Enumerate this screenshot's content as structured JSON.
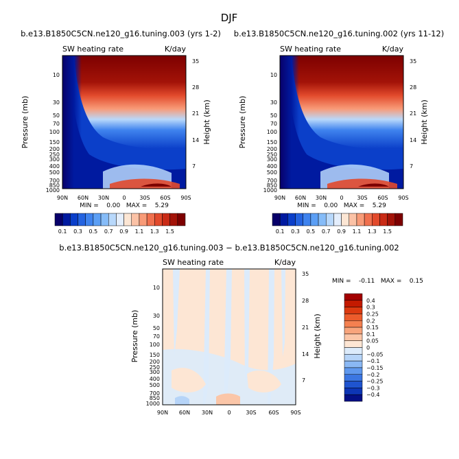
{
  "page": {
    "title": "DJF"
  },
  "chart_data": [
    {
      "type": "heatmap",
      "title": "b.e13.B1850C5CN.ne120_g16.tuning.003 (yrs 1-2)",
      "left_label": "SW heating rate",
      "right_label": "K/day",
      "xlabel": "",
      "ylabel": "Pressure (mb)",
      "y2label": "Height (km)",
      "xticks": [
        "90N",
        "60N",
        "30N",
        "0",
        "30S",
        "60S",
        "90S"
      ],
      "yticks": [
        "10",
        "30",
        "50",
        "70",
        "100",
        "150",
        "200",
        "250",
        "300",
        "400",
        "500",
        "700",
        "850",
        "1000"
      ],
      "height_ticks": [
        "35",
        "28",
        "21",
        "14",
        "7"
      ],
      "stats": "MIN =    0.00   MAX =    5.29",
      "min": 0.0,
      "max": 5.29,
      "colorbar": {
        "labels": [
          "0.1",
          "0.3",
          "0.5",
          "0.7",
          "0.9",
          "1.1",
          "1.3",
          "1.5"
        ],
        "colors": [
          "#08006a",
          "#001aa0",
          "#0b3fc9",
          "#2463e0",
          "#3f83ee",
          "#5c9ff5",
          "#86bcf8",
          "#b8d8fb",
          "#e4eefc",
          "#fce6d4",
          "#fbc2a6",
          "#f89b78",
          "#f0704e",
          "#e24a2c",
          "#c92b16",
          "#a31308",
          "#7d0000"
        ]
      }
    },
    {
      "type": "heatmap",
      "title": "b.e13.B1850C5CN.ne120_g16.tuning.002 (yrs 11-12)",
      "left_label": "SW heating rate",
      "right_label": "K/day",
      "xlabel": "",
      "ylabel": "Pressure (mb)",
      "y2label": "Height (km)",
      "xticks": [
        "90N",
        "60N",
        "30N",
        "0",
        "30S",
        "60S",
        "90S"
      ],
      "yticks": [
        "10",
        "30",
        "50",
        "70",
        "100",
        "150",
        "200",
        "250",
        "300",
        "400",
        "500",
        "700",
        "850",
        "1000"
      ],
      "height_ticks": [
        "35",
        "28",
        "21",
        "14",
        "7"
      ],
      "stats": "MIN =    0.00   MAX =    5.29",
      "min": 0.0,
      "max": 5.29,
      "colorbar": {
        "labels": [
          "0.1",
          "0.3",
          "0.5",
          "0.7",
          "0.9",
          "1.1",
          "1.3",
          "1.5"
        ],
        "colors": [
          "#08006a",
          "#001aa0",
          "#0b3fc9",
          "#2463e0",
          "#3f83ee",
          "#5c9ff5",
          "#86bcf8",
          "#b8d8fb",
          "#e4eefc",
          "#fce6d4",
          "#fbc2a6",
          "#f89b78",
          "#f0704e",
          "#e24a2c",
          "#c92b16",
          "#a31308",
          "#7d0000"
        ]
      }
    },
    {
      "type": "heatmap",
      "title": "b.e13.B1850C5CN.ne120_g16.tuning.003 − b.e13.B1850C5CN.ne120_g16.tuning.002",
      "left_label": "SW heating rate",
      "right_label": "K/day",
      "xlabel": "",
      "ylabel": "Pressure (mb)",
      "y2label": "Height (km)",
      "xticks": [
        "90N",
        "60N",
        "30N",
        "0",
        "30S",
        "60S",
        "90S"
      ],
      "yticks": [
        "10",
        "30",
        "50",
        "70",
        "100",
        "150",
        "200",
        "250",
        "300",
        "400",
        "500",
        "700",
        "850",
        "1000"
      ],
      "height_ticks": [
        "35",
        "28",
        "21",
        "14",
        "7"
      ],
      "stats": "MIN =    -0.11   MAX =    0.15",
      "min": -0.11,
      "max": 0.15,
      "colorbar": {
        "labels": [
          "0.4",
          "0.3",
          "0.25",
          "0.2",
          "0.15",
          "0.1",
          "0.05",
          "0",
          "−0.05",
          "−0.1",
          "−0.15",
          "−0.2",
          "−0.25",
          "−0.3",
          "−0.4"
        ],
        "colors": [
          "#a30000",
          "#c41a00",
          "#dc3a10",
          "#ec5c2c",
          "#f48050",
          "#f8a47c",
          "#fbc6a8",
          "#fde6d4",
          "#dcebfb",
          "#b6d4f8",
          "#8ab8f4",
          "#5f98ee",
          "#3b76e2",
          "#1f54cf",
          "#0d35b5",
          "#040f86"
        ]
      }
    }
  ]
}
